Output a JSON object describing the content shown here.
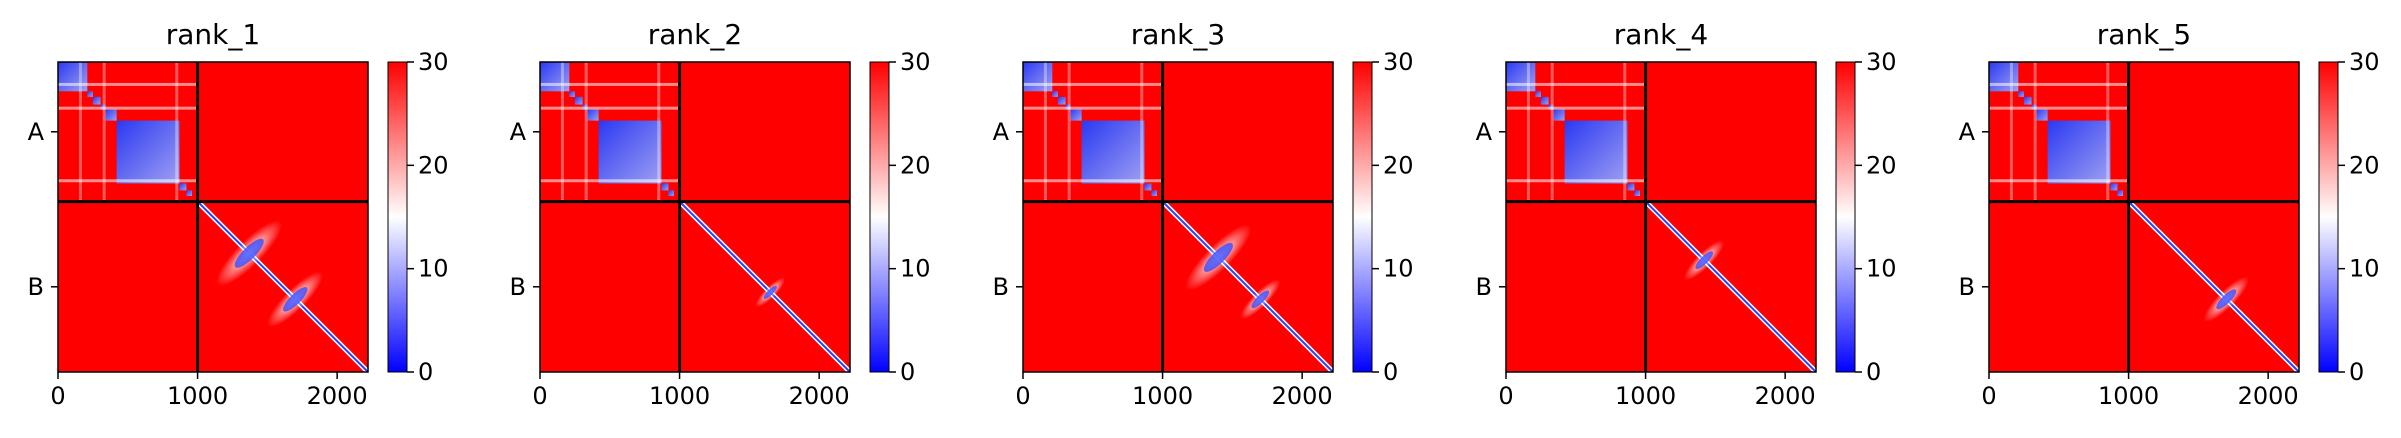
{
  "chart_data": [
    {
      "type": "heatmap",
      "title": "rank_1",
      "x_ticks": [
        0,
        1000,
        2000
      ],
      "x_range": [
        0,
        2221
      ],
      "y_tick_labels": [
        "A",
        "B"
      ],
      "chain_lengths": {
        "A": 1000,
        "B": 1221
      },
      "boundary": 1000,
      "colorbar": {
        "ticks": [
          0,
          10,
          20,
          30
        ],
        "range": [
          0,
          30
        ],
        "colormap": "bwr"
      },
      "cross_features": [
        {
          "pos": 1370,
          "strength": 1.0
        },
        {
          "pos": 1700,
          "strength": 0.8
        }
      ]
    },
    {
      "type": "heatmap",
      "title": "rank_2",
      "x_ticks": [
        0,
        1000,
        2000
      ],
      "x_range": [
        0,
        2221
      ],
      "y_tick_labels": [
        "A",
        "B"
      ],
      "chain_lengths": {
        "A": 1000,
        "B": 1221
      },
      "boundary": 1000,
      "colorbar": {
        "ticks": [
          0,
          10,
          20,
          30
        ],
        "range": [
          0,
          30
        ],
        "colormap": "bwr"
      },
      "cross_features": [
        {
          "pos": 1650,
          "strength": 0.3
        }
      ]
    },
    {
      "type": "heatmap",
      "title": "rank_3",
      "x_ticks": [
        0,
        1000,
        2000
      ],
      "x_range": [
        0,
        2221
      ],
      "y_tick_labels": [
        "A",
        "B"
      ],
      "chain_lengths": {
        "A": 1000,
        "B": 1221
      },
      "boundary": 1000,
      "colorbar": {
        "ticks": [
          0,
          10,
          20,
          30
        ],
        "range": [
          0,
          30
        ],
        "colormap": "bwr"
      },
      "cross_features": [
        {
          "pos": 1400,
          "strength": 1.0
        },
        {
          "pos": 1700,
          "strength": 0.5
        }
      ]
    },
    {
      "type": "heatmap",
      "title": "rank_4",
      "x_ticks": [
        0,
        1000,
        2000
      ],
      "x_range": [
        0,
        2221
      ],
      "y_tick_labels": [
        "A",
        "B"
      ],
      "chain_lengths": {
        "A": 1000,
        "B": 1221
      },
      "boundary": 1000,
      "colorbar": {
        "ticks": [
          0,
          10,
          20,
          30
        ],
        "range": [
          0,
          30
        ],
        "colormap": "bwr"
      },
      "cross_features": [
        {
          "pos": 1420,
          "strength": 0.5
        }
      ]
    },
    {
      "type": "heatmap",
      "title": "rank_5",
      "x_ticks": [
        0,
        1000,
        2000
      ],
      "x_range": [
        0,
        2221
      ],
      "y_tick_labels": [
        "A",
        "B"
      ],
      "chain_lengths": {
        "A": 1000,
        "B": 1221
      },
      "boundary": 1000,
      "colorbar": {
        "ticks": [
          0,
          10,
          20,
          30
        ],
        "range": [
          0,
          30
        ],
        "colormap": "bwr"
      },
      "cross_features": [
        {
          "pos": 1700,
          "strength": 0.6
        }
      ]
    }
  ],
  "colors": {
    "high": "#ff0000",
    "mid": "#ffffff",
    "low": "#0000ff",
    "boundary_line": "#000000"
  }
}
